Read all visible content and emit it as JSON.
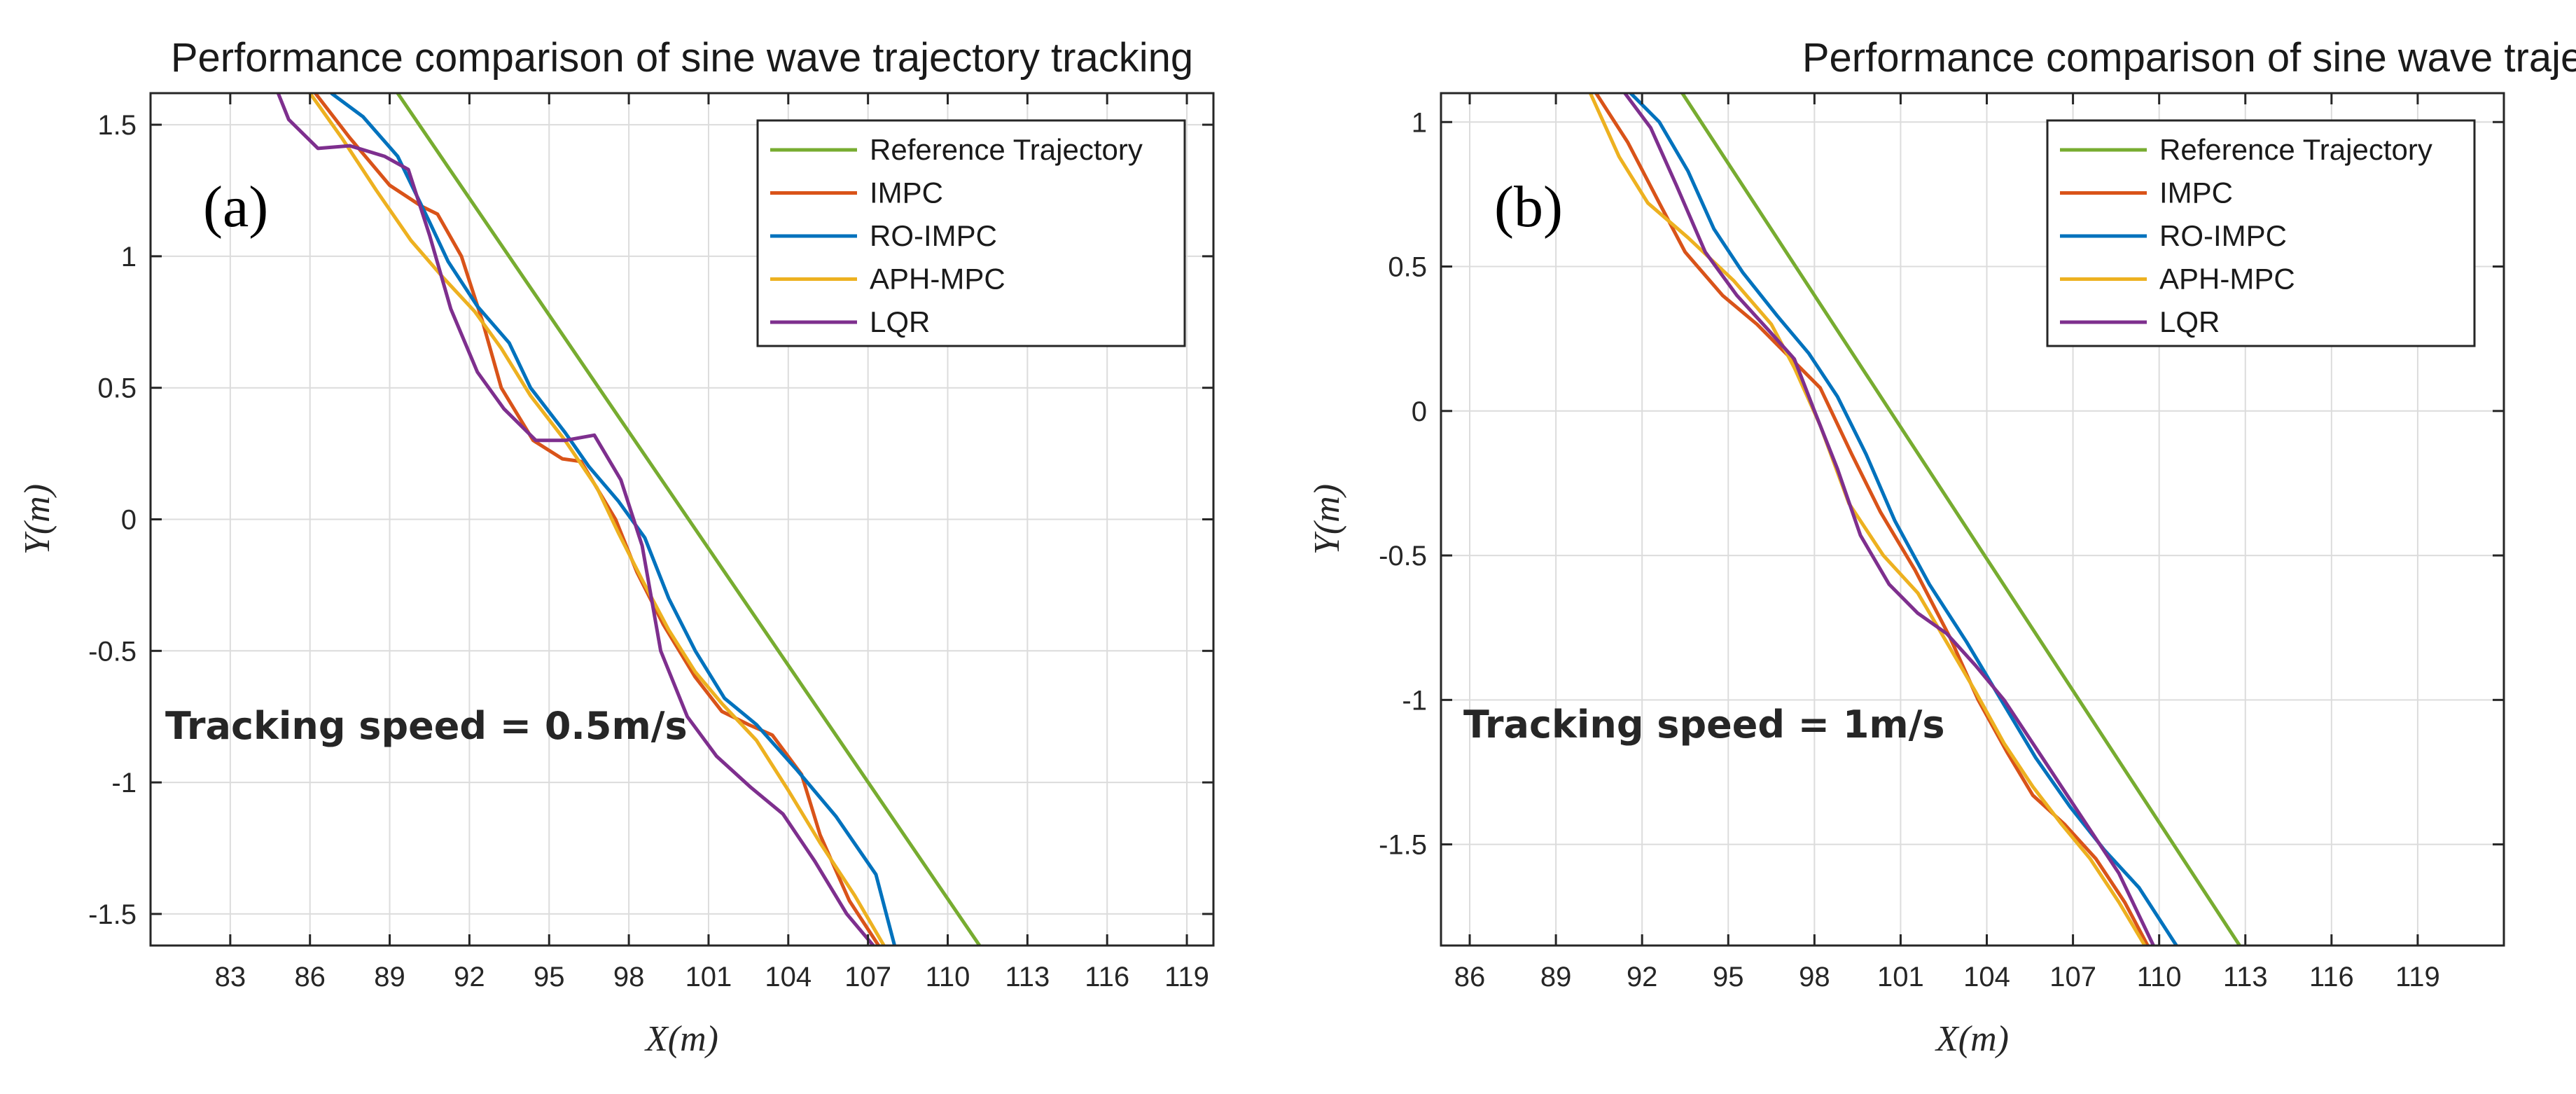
{
  "chart_data": [
    {
      "type": "line",
      "title": "Performance comparison of sine wave trajectory tracking",
      "panel_label": "(a)",
      "annotation": "Tracking speed = 0.5m/s",
      "xlabel": "X(m)",
      "ylabel": "Y(m)",
      "xlim": [
        80,
        120
      ],
      "ylim": [
        -1.62,
        1.62
      ],
      "xticks": [
        83,
        86,
        89,
        92,
        95,
        98,
        101,
        104,
        107,
        110,
        113,
        116,
        119
      ],
      "yticks": [
        -1.5,
        -1,
        -0.5,
        0,
        0.5,
        1,
        1.5
      ],
      "xtick_labels": [
        "83",
        "86",
        "89",
        "92",
        "95",
        "98",
        "101",
        "104",
        "107",
        "110",
        "113",
        "116",
        "119"
      ],
      "ytick_labels": [
        "-1.5",
        "-1",
        "-0.5",
        "0",
        "0.5",
        "1",
        "1.5"
      ],
      "grid": true,
      "legend_position": "top-right",
      "series": [
        {
          "name": "Reference Trajectory",
          "color": "#77ac30",
          "x": [
            89.3,
            111.2
          ],
          "y": [
            1.62,
            -1.62
          ]
        },
        {
          "name": "IMPC",
          "color": "#d95319",
          "x": [
            86.2,
            87.5,
            89.0,
            90.2,
            90.8,
            91.7,
            92.5,
            93.2,
            94.4,
            95.5,
            96.2,
            97.5,
            98.3,
            99.3,
            100.5,
            101.5,
            102.5,
            103.4,
            104.5,
            105.2,
            106.3,
            107.4
          ],
          "y": [
            1.62,
            1.45,
            1.27,
            1.19,
            1.16,
            1.0,
            0.75,
            0.5,
            0.3,
            0.23,
            0.22,
            0.0,
            -0.2,
            -0.4,
            -0.6,
            -0.73,
            -0.78,
            -0.82,
            -0.97,
            -1.2,
            -1.45,
            -1.62
          ]
        },
        {
          "name": "RO-IMPC",
          "color": "#0072bd",
          "x": [
            86.8,
            88.0,
            89.3,
            90.5,
            91.2,
            92.3,
            93.5,
            94.3,
            95.6,
            96.5,
            97.6,
            98.6,
            99.5,
            100.5,
            101.6,
            102.8,
            104.3,
            105.8,
            107.3,
            108.0
          ],
          "y": [
            1.62,
            1.53,
            1.38,
            1.13,
            0.98,
            0.81,
            0.67,
            0.5,
            0.33,
            0.2,
            0.07,
            -0.07,
            -0.3,
            -0.5,
            -0.68,
            -0.78,
            -0.95,
            -1.13,
            -1.35,
            -1.62
          ]
        },
        {
          "name": "APH-MPC",
          "color": "#edb120",
          "x": [
            86.0,
            87.2,
            88.5,
            89.8,
            91.0,
            92.2,
            93.2,
            94.3,
            95.6,
            96.8,
            97.6,
            98.5,
            99.5,
            100.5,
            101.5,
            102.8,
            104.0,
            105.2,
            106.5,
            107.6
          ],
          "y": [
            1.62,
            1.45,
            1.25,
            1.06,
            0.92,
            0.79,
            0.65,
            0.47,
            0.3,
            0.12,
            -0.05,
            -0.23,
            -0.42,
            -0.58,
            -0.7,
            -0.84,
            -1.03,
            -1.23,
            -1.43,
            -1.62
          ]
        },
        {
          "name": "LQR",
          "color": "#7e2f8e",
          "x": [
            84.8,
            85.2,
            86.3,
            87.5,
            88.8,
            89.7,
            90.5,
            91.3,
            92.3,
            93.3,
            94.5,
            95.6,
            96.7,
            97.7,
            98.5,
            99.2,
            100.2,
            101.3,
            102.6,
            103.8,
            105.0,
            106.2,
            107.2
          ],
          "y": [
            1.62,
            1.52,
            1.41,
            1.42,
            1.38,
            1.33,
            1.08,
            0.8,
            0.56,
            0.42,
            0.3,
            0.3,
            0.32,
            0.15,
            -0.1,
            -0.5,
            -0.75,
            -0.9,
            -1.02,
            -1.12,
            -1.3,
            -1.5,
            -1.62
          ]
        }
      ]
    },
    {
      "type": "line",
      "title": "Performance comparison of sine wave trajectory tracking",
      "panel_label": "(b)",
      "annotation": "Tracking speed = 1m/s",
      "xlabel": "X(m)",
      "ylabel": "Y(m)",
      "xlim": [
        85,
        122
      ],
      "ylim": [
        -1.85,
        1.1
      ],
      "xticks": [
        86,
        89,
        92,
        95,
        98,
        101,
        104,
        107,
        110,
        113,
        116,
        119
      ],
      "yticks": [
        -1.5,
        -1,
        -0.5,
        0,
        0.5,
        1
      ],
      "xtick_labels": [
        "86",
        "89",
        "92",
        "95",
        "98",
        "101",
        "104",
        "107",
        "110",
        "113",
        "116",
        "119"
      ],
      "ytick_labels": [
        "-1.5",
        "-1",
        "-0.5",
        "0",
        "0.5",
        "1"
      ],
      "grid": true,
      "legend_position": "top-right",
      "series": [
        {
          "name": "Reference Trajectory",
          "color": "#77ac30",
          "x": [
            93.4,
            112.8
          ],
          "y": [
            1.1,
            -1.85
          ]
        },
        {
          "name": "IMPC",
          "color": "#d95319",
          "x": [
            90.4,
            91.5,
            92.6,
            93.5,
            94.8,
            96.0,
            97.0,
            98.2,
            99.3,
            100.3,
            101.5,
            102.7,
            103.7,
            104.7,
            105.6,
            106.7,
            107.8,
            108.8,
            109.6
          ],
          "y": [
            1.1,
            0.93,
            0.72,
            0.55,
            0.4,
            0.3,
            0.2,
            0.08,
            -0.15,
            -0.35,
            -0.55,
            -0.78,
            -1.0,
            -1.18,
            -1.33,
            -1.43,
            -1.55,
            -1.7,
            -1.85
          ]
        },
        {
          "name": "RO-IMPC",
          "color": "#0072bd",
          "x": [
            91.6,
            92.6,
            93.6,
            94.5,
            95.5,
            96.7,
            97.8,
            98.8,
            99.8,
            100.8,
            102.0,
            103.3,
            104.5,
            105.7,
            106.9,
            108.1,
            109.3,
            110.6
          ],
          "y": [
            1.1,
            1.0,
            0.83,
            0.63,
            0.48,
            0.33,
            0.2,
            0.05,
            -0.15,
            -0.38,
            -0.6,
            -0.8,
            -1.0,
            -1.2,
            -1.37,
            -1.52,
            -1.65,
            -1.85
          ]
        },
        {
          "name": "APH-MPC",
          "color": "#edb120",
          "x": [
            90.2,
            91.2,
            92.2,
            93.6,
            95.2,
            96.5,
            97.3,
            98.2,
            99.2,
            100.4,
            101.6,
            102.6,
            103.6,
            104.6,
            105.6,
            106.6,
            107.6,
            108.6,
            109.5
          ],
          "y": [
            1.1,
            0.88,
            0.72,
            0.6,
            0.45,
            0.3,
            0.15,
            -0.05,
            -0.32,
            -0.5,
            -0.63,
            -0.8,
            -0.97,
            -1.15,
            -1.3,
            -1.43,
            -1.55,
            -1.7,
            -1.85
          ]
        },
        {
          "name": "LQR",
          "color": "#7e2f8e",
          "x": [
            91.4,
            92.3,
            93.2,
            94.2,
            95.3,
            96.4,
            97.3,
            98.0,
            98.8,
            99.6,
            100.6,
            101.6,
            102.6,
            103.6,
            104.6,
            105.6,
            106.6,
            107.6,
            108.6,
            109.8
          ],
          "y": [
            1.1,
            0.98,
            0.78,
            0.55,
            0.4,
            0.28,
            0.18,
            0.0,
            -0.2,
            -0.43,
            -0.6,
            -0.7,
            -0.77,
            -0.88,
            -1.0,
            -1.15,
            -1.3,
            -1.45,
            -1.6,
            -1.85
          ]
        }
      ]
    }
  ]
}
